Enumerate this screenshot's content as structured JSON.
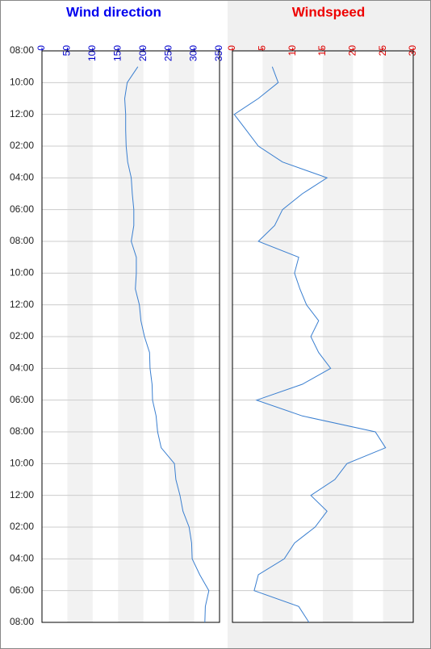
{
  "chart_data": [
    {
      "type": "line",
      "title": "Wind direction",
      "title_color": "#0000ee",
      "tick_color": "#0000cc",
      "color": "#3a7fd0",
      "xlim": [
        0,
        350
      ],
      "xticks": [
        0,
        50,
        100,
        150,
        200,
        250,
        300,
        350
      ],
      "bands": true,
      "grid": true,
      "ylim": [
        0,
        36
      ],
      "yticks": [
        {
          "value": 0,
          "label": "08:00"
        },
        {
          "value": 2,
          "label": "10:00"
        },
        {
          "value": 4,
          "label": "12:00"
        },
        {
          "value": 6,
          "label": "02:00"
        },
        {
          "value": 8,
          "label": "04:00"
        },
        {
          "value": 10,
          "label": "06:00"
        },
        {
          "value": 12,
          "label": "08:00"
        },
        {
          "value": 14,
          "label": "10:00"
        },
        {
          "value": 16,
          "label": "12:00"
        },
        {
          "value": 18,
          "label": "02:00"
        },
        {
          "value": 20,
          "label": "04:00"
        },
        {
          "value": 22,
          "label": "06:00"
        },
        {
          "value": 24,
          "label": "08:00"
        },
        {
          "value": 26,
          "label": "10:00"
        },
        {
          "value": 28,
          "label": "12:00"
        },
        {
          "value": 30,
          "label": "02:00"
        },
        {
          "value": 32,
          "label": "04:00"
        },
        {
          "value": 34,
          "label": "06:00"
        },
        {
          "value": 36,
          "label": "08:00"
        }
      ],
      "y": [
        1,
        2,
        3,
        4,
        5,
        6,
        7,
        8,
        9,
        10,
        11,
        12,
        13,
        14,
        15,
        16,
        17,
        18,
        19,
        20,
        21,
        22,
        23,
        24,
        25,
        26,
        27,
        28,
        29,
        30,
        31,
        32,
        33,
        34,
        35,
        36
      ],
      "values": [
        189,
        168,
        163,
        165,
        165,
        166,
        169,
        176,
        178,
        181,
        181,
        176,
        186,
        186,
        184,
        192,
        195,
        202,
        212,
        213,
        217,
        218,
        225,
        228,
        235,
        261,
        264,
        272,
        278,
        290,
        295,
        296,
        311,
        329,
        322,
        321
      ]
    },
    {
      "type": "line",
      "title": "Windspeed",
      "title_color": "#ee0000",
      "tick_color": "#dd0000",
      "color": "#3a7fd0",
      "xlim": [
        0,
        30
      ],
      "xticks": [
        0,
        5,
        10,
        15,
        20,
        25,
        30
      ],
      "bands": true,
      "grid": true,
      "ylim": [
        0,
        36
      ],
      "yticks": [
        0,
        2,
        4,
        6,
        8,
        10,
        12,
        14,
        16,
        18,
        20,
        22,
        24,
        26,
        28,
        30,
        32,
        34,
        36
      ],
      "y": [
        1,
        2,
        3,
        4,
        5,
        6,
        7,
        8,
        9,
        10,
        11,
        12,
        13,
        14,
        15,
        16,
        17,
        18,
        19,
        20,
        21,
        22,
        23,
        24,
        25,
        26,
        27,
        28,
        29,
        30,
        31,
        32,
        33,
        34,
        35,
        36
      ],
      "values": [
        6.6,
        7.6,
        4.3,
        0.3,
        2.3,
        4.3,
        8.3,
        15.7,
        11.6,
        8.3,
        7,
        4.3,
        11,
        10.3,
        11.2,
        12.3,
        14.3,
        13,
        14.3,
        16.3,
        11.6,
        4,
        11.6,
        23.7,
        25.4,
        19,
        17,
        13,
        15.7,
        13.7,
        10.3,
        8.6,
        4.3,
        3.6,
        11,
        12.7
      ]
    }
  ]
}
